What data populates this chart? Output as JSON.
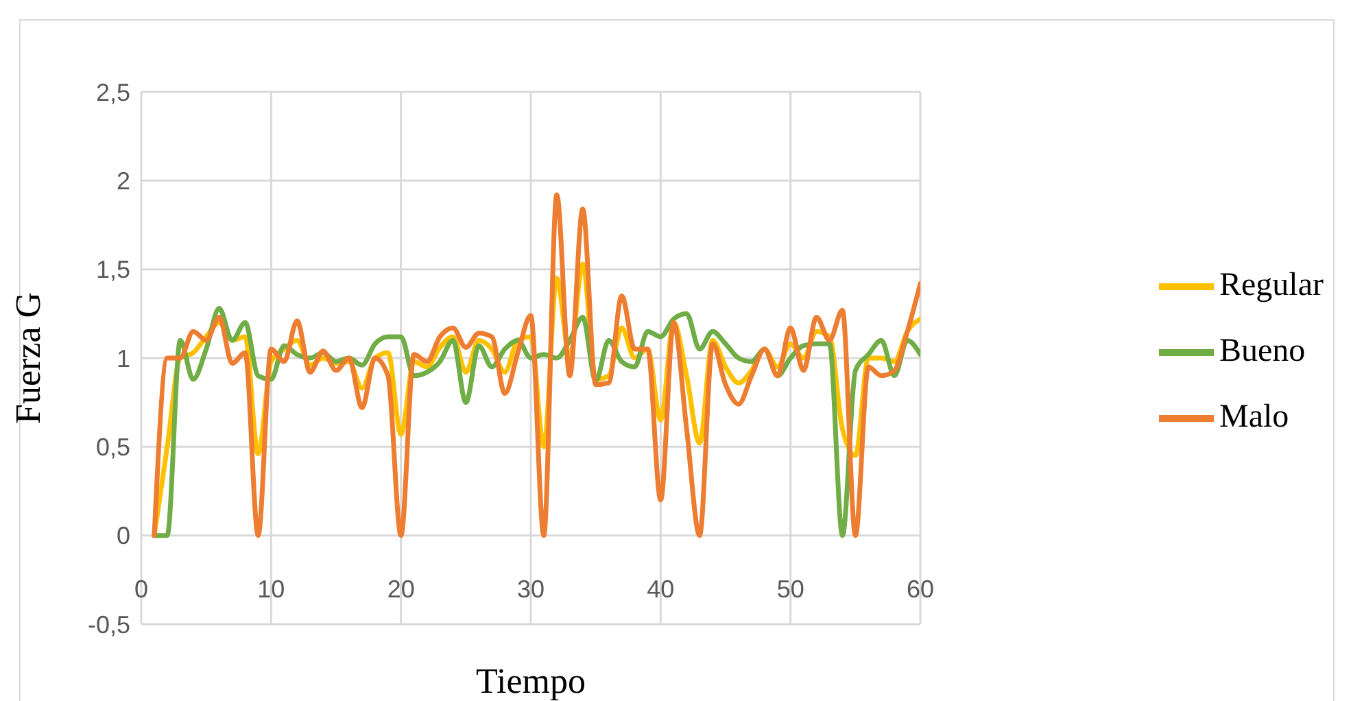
{
  "chart_data": {
    "type": "line",
    "xlabel": "Tiempo",
    "ylabel": "Fuerza G",
    "x": [
      1,
      2,
      3,
      4,
      5,
      6,
      7,
      8,
      9,
      10,
      11,
      12,
      13,
      14,
      15,
      16,
      17,
      18,
      19,
      20,
      21,
      22,
      23,
      24,
      25,
      26,
      27,
      28,
      29,
      30,
      31,
      32,
      33,
      34,
      35,
      36,
      37,
      38,
      39,
      40,
      41,
      42,
      43,
      44,
      45,
      46,
      47,
      48,
      49,
      50,
      51,
      52,
      53,
      54,
      55,
      56,
      57,
      58,
      59,
      60
    ],
    "series": [
      {
        "name": "Regular",
        "color": "#ffc000",
        "values": [
          0,
          0.5,
          1.0,
          1.03,
          1.12,
          1.2,
          1.1,
          1.12,
          0.46,
          0.98,
          1.05,
          1.1,
          0.96,
          1.0,
          0.97,
          0.98,
          0.83,
          1.0,
          1.03,
          0.57,
          0.98,
          0.95,
          1.06,
          1.12,
          0.92,
          1.1,
          1.05,
          0.92,
          1.1,
          1.12,
          0.5,
          1.45,
          1.0,
          1.53,
          0.88,
          0.9,
          1.17,
          1.0,
          1.05,
          0.65,
          1.2,
          0.9,
          0.52,
          1.1,
          0.95,
          0.86,
          0.93,
          1.05,
          0.95,
          1.08,
          1.0,
          1.15,
          1.12,
          0.6,
          0.45,
          1.0,
          1.0,
          0.98,
          1.15,
          1.22
        ]
      },
      {
        "name": "Bueno",
        "color": "#70ad47",
        "values": [
          0,
          0,
          1.1,
          0.88,
          1.05,
          1.28,
          1.1,
          1.2,
          0.9,
          0.88,
          1.07,
          1.02,
          1.0,
          1.03,
          0.98,
          1.0,
          0.96,
          1.08,
          1.12,
          1.12,
          0.9,
          0.92,
          0.98,
          1.1,
          0.75,
          1.07,
          0.95,
          1.05,
          1.1,
          1.0,
          1.02,
          1.0,
          1.1,
          1.23,
          0.87,
          1.1,
          0.98,
          0.95,
          1.15,
          1.12,
          1.22,
          1.25,
          1.05,
          1.15,
          1.08,
          1.0,
          0.98,
          1.05,
          0.9,
          1.0,
          1.07,
          1.08,
          1.08,
          0,
          0.93,
          1.02,
          1.1,
          0.9,
          1.1,
          1.02
        ]
      },
      {
        "name": "Malo",
        "color": "#ed7d31",
        "values": [
          0,
          1.0,
          1.0,
          1.15,
          1.1,
          1.23,
          0.97,
          1.03,
          0,
          1.05,
          0.98,
          1.21,
          0.92,
          1.04,
          0.93,
          1.0,
          0.72,
          1.0,
          0.9,
          0,
          1.02,
          0.98,
          1.12,
          1.17,
          1.06,
          1.14,
          1.12,
          0.8,
          1.03,
          1.24,
          0,
          1.92,
          0.9,
          1.84,
          0.85,
          0.86,
          1.35,
          1.05,
          1.05,
          0.2,
          1.2,
          0.6,
          0,
          1.08,
          0.85,
          0.74,
          0.9,
          1.05,
          0.9,
          1.17,
          0.93,
          1.23,
          1.1,
          1.27,
          0,
          0.95,
          0.9,
          0.93,
          1.15,
          1.42
        ]
      }
    ],
    "xlim": [
      0,
      60
    ],
    "xticks": [
      0,
      10,
      20,
      30,
      40,
      50,
      60
    ],
    "ylim": [
      -0.5,
      2.5
    ],
    "yticks": [
      {
        "value": -0.5,
        "label": "-0,5"
      },
      0,
      {
        "value": 0.5,
        "label": "0,5"
      },
      1,
      {
        "value": 1.5,
        "label": "1,5"
      },
      2,
      {
        "value": 2.5,
        "label": "2,5"
      }
    ],
    "grid": true,
    "legend": "right",
    "marker": "none",
    "line_style": "solid"
  }
}
